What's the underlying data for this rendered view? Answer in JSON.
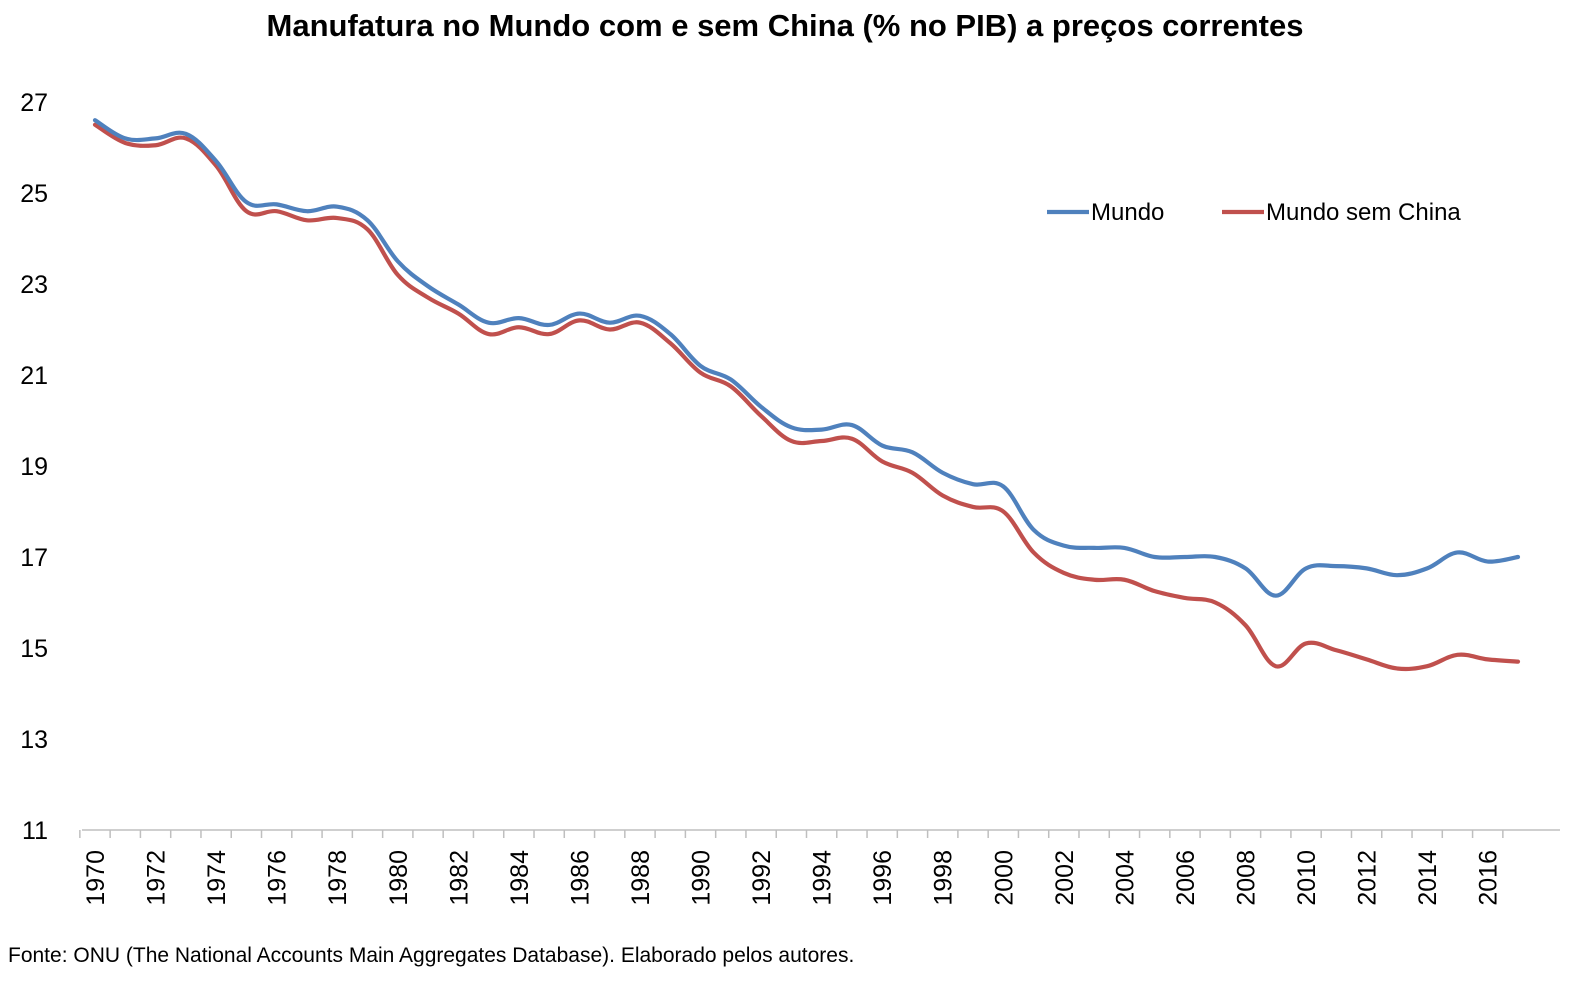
{
  "chart_data": {
    "type": "line",
    "title": "Manufatura no Mundo com e sem China (% no PIB) a preços correntes",
    "xlabel": "",
    "ylabel": "",
    "x": [
      1970,
      1971,
      1972,
      1973,
      1974,
      1975,
      1976,
      1977,
      1978,
      1979,
      1980,
      1981,
      1982,
      1983,
      1984,
      1985,
      1986,
      1987,
      1988,
      1989,
      1990,
      1991,
      1992,
      1993,
      1994,
      1995,
      1996,
      1997,
      1998,
      1999,
      2000,
      2001,
      2002,
      2003,
      2004,
      2005,
      2006,
      2007,
      2008,
      2009,
      2010,
      2011,
      2012,
      2013,
      2014,
      2015,
      2016,
      2017
    ],
    "x_tick_labels": [
      "1970",
      "1972",
      "1974",
      "1976",
      "1978",
      "1980",
      "1982",
      "1984",
      "1986",
      "1988",
      "1990",
      "1992",
      "1994",
      "1996",
      "1998",
      "2000",
      "2002",
      "2004",
      "2006",
      "2008",
      "2010",
      "2012",
      "2014",
      "2016"
    ],
    "y_ticks": [
      11,
      13,
      15,
      17,
      19,
      21,
      23,
      25,
      27
    ],
    "ylim": [
      11,
      27.5
    ],
    "xlim": [
      1970,
      2017
    ],
    "grid": false,
    "legend_position": "top-right",
    "series": [
      {
        "name": "Mundo",
        "color": "#4f81bd",
        "values": [
          26.6,
          26.2,
          26.2,
          26.3,
          25.7,
          24.8,
          24.75,
          24.6,
          24.7,
          24.4,
          23.5,
          22.95,
          22.55,
          22.15,
          22.25,
          22.1,
          22.35,
          22.15,
          22.3,
          21.9,
          21.2,
          20.9,
          20.3,
          19.85,
          19.8,
          19.9,
          19.45,
          19.3,
          18.85,
          18.6,
          18.55,
          17.6,
          17.25,
          17.2,
          17.2,
          17.0,
          17.0,
          17.0,
          16.75,
          16.15,
          16.75,
          16.8,
          16.75,
          16.6,
          16.75,
          17.1,
          16.9,
          17.0
        ]
      },
      {
        "name": "Mundo sem China",
        "color": "#c0504d",
        "values": [
          26.5,
          26.1,
          26.05,
          26.2,
          25.6,
          24.6,
          24.6,
          24.4,
          24.45,
          24.2,
          23.2,
          22.7,
          22.35,
          21.9,
          22.05,
          21.9,
          22.2,
          22.0,
          22.15,
          21.7,
          21.05,
          20.75,
          20.1,
          19.55,
          19.55,
          19.6,
          19.1,
          18.85,
          18.35,
          18.1,
          18.0,
          17.1,
          16.65,
          16.5,
          16.5,
          16.25,
          16.1,
          16.0,
          15.5,
          14.6,
          15.1,
          14.95,
          14.75,
          14.55,
          14.6,
          14.85,
          14.75,
          14.7
        ]
      }
    ]
  },
  "source": "Fonte: ONU (The National Accounts Main Aggregates Database). Elaborado pelos autores."
}
